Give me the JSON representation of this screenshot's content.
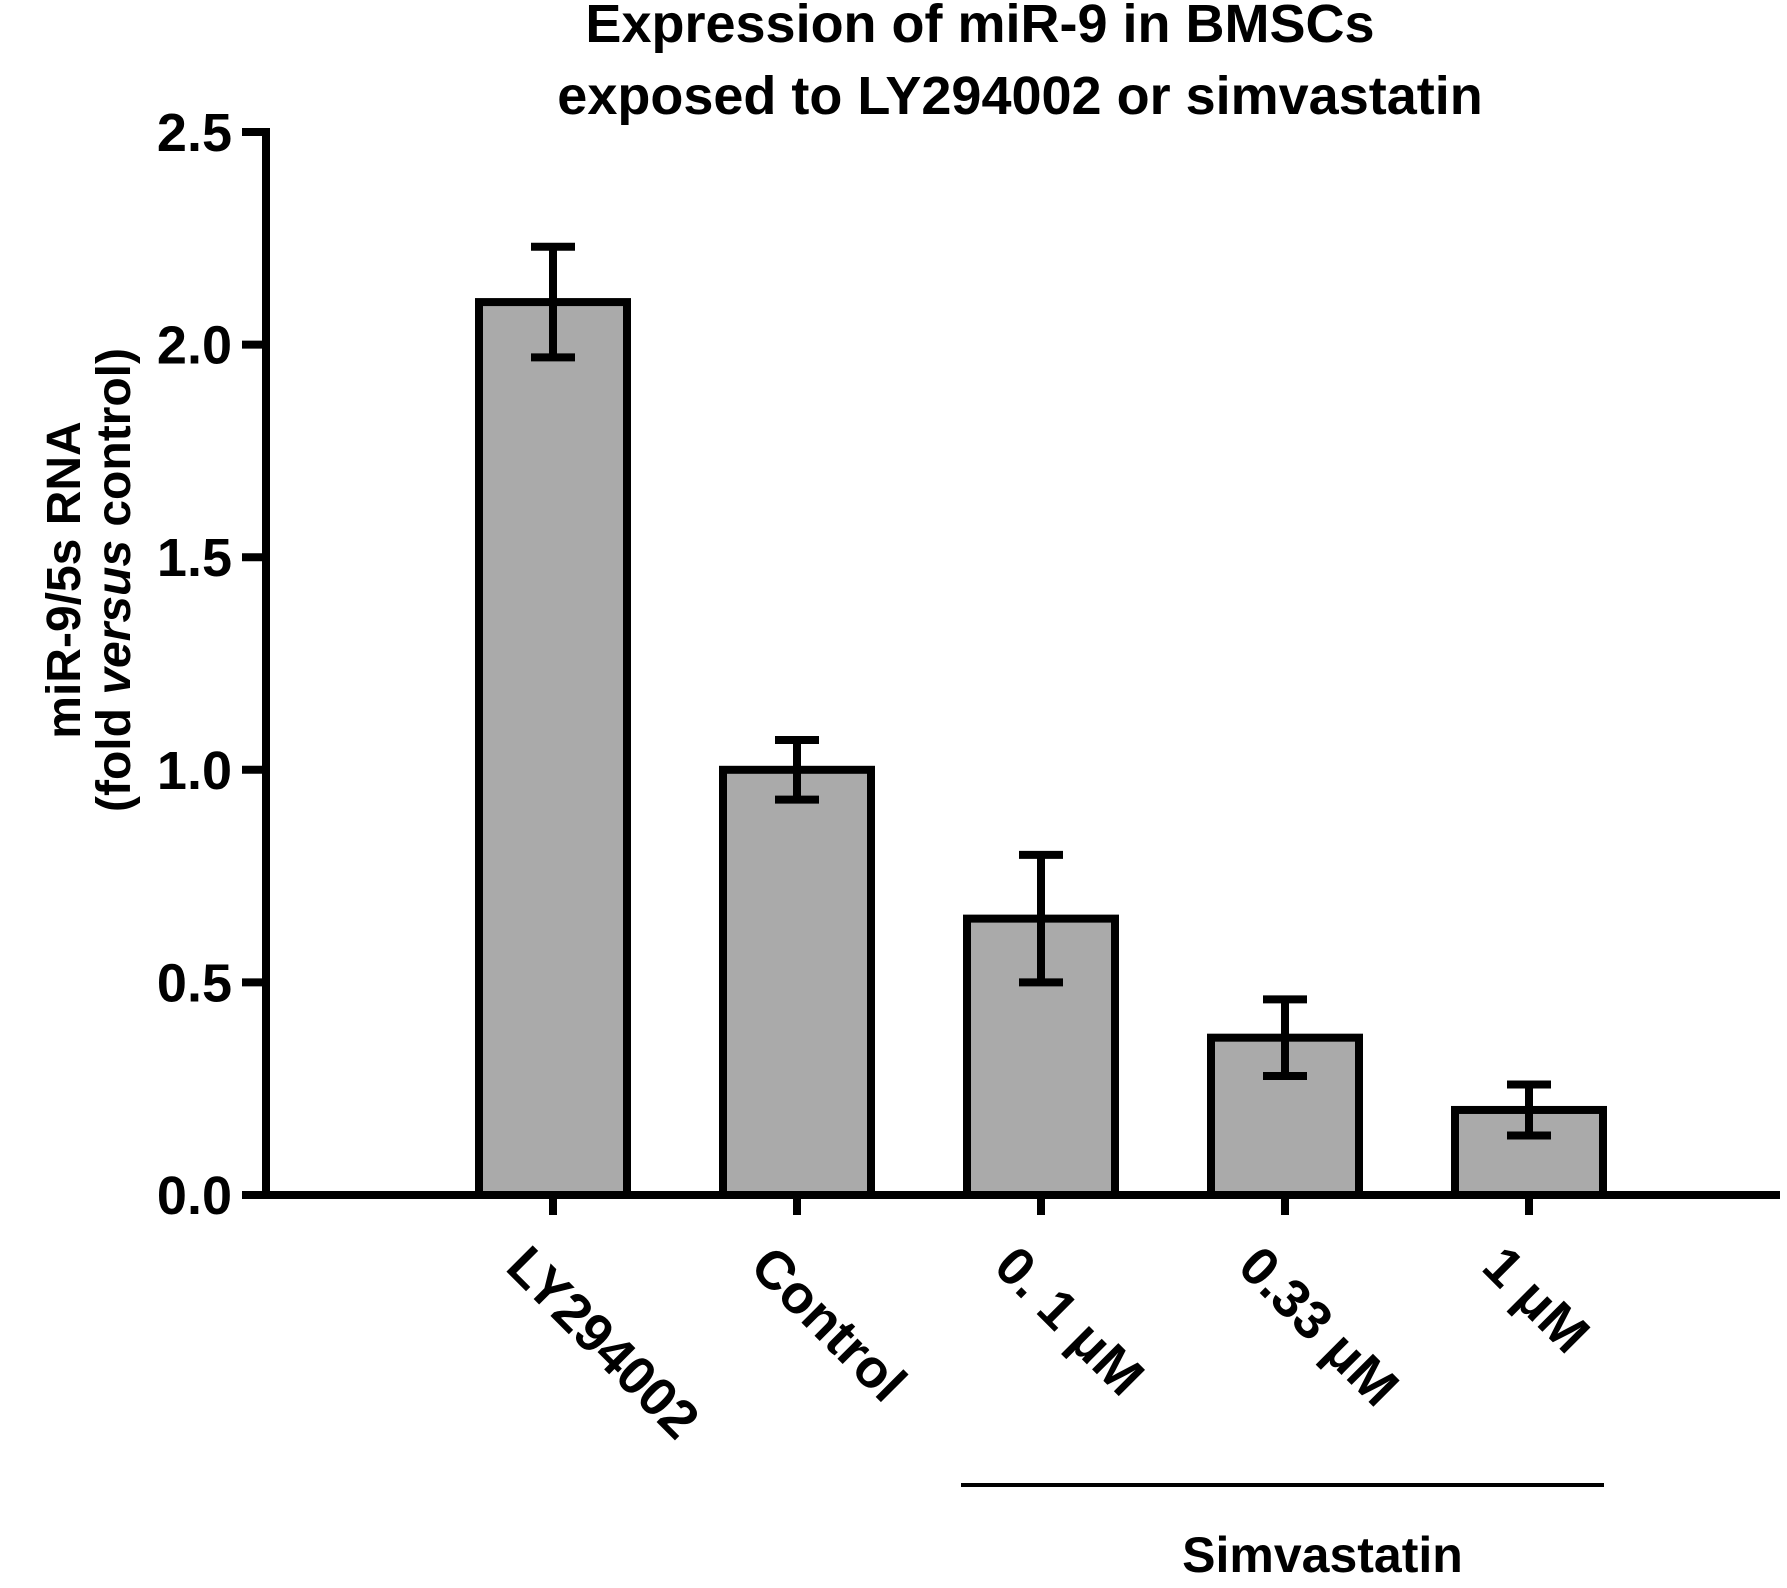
{
  "chart_data": {
    "type": "bar",
    "title_lines": [
      "Expression of miR-9 in BMSCs",
      "exposed to LY294002 or simvastatin"
    ],
    "ylabel_line1": "miR-9/5s RNA",
    "ylabel_line2_prefix": "(fold ",
    "ylabel_line2_italic": "versus",
    "ylabel_line2_suffix": " control)",
    "xlabel": "",
    "categories": [
      "LY294002",
      "Control",
      "0. 1 μM",
      "0.33 μM",
      "1 μM"
    ],
    "values": [
      2.1,
      1.0,
      0.65,
      0.37,
      0.2
    ],
    "errors": [
      0.13,
      0.07,
      0.15,
      0.09,
      0.06
    ],
    "ylim": [
      0,
      2.5
    ],
    "yticks": [
      "0.0",
      "0.5",
      "1.0",
      "1.5",
      "2.0",
      "2.5"
    ],
    "group_label": "Simvastatin",
    "group_members": [
      2,
      3,
      4
    ],
    "bar_color": "#aaaaaa",
    "edge_color": "#000000",
    "grid": false,
    "legend": "none"
  }
}
